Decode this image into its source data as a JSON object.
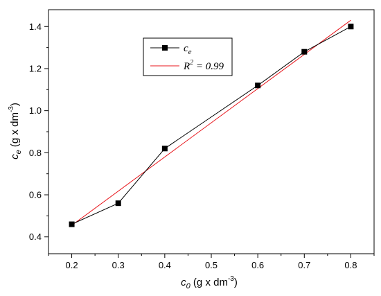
{
  "chart_data": {
    "type": "scatter",
    "title": "",
    "xlabel": {
      "symbol": "c",
      "sub": "0",
      "unit": " (g x dm",
      "exp": "-3",
      "close": ")"
    },
    "ylabel": {
      "symbol": "c",
      "sub": "e",
      "unit": " (g x dm",
      "exp": "-3",
      "close": ")"
    },
    "xlim": [
      0.15,
      0.85
    ],
    "ylim": [
      0.32,
      1.48
    ],
    "xticks": [
      "0.2",
      "0.3",
      "0.4",
      "0.5",
      "0.6",
      "0.7",
      "0.8"
    ],
    "yticks": [
      "0.4",
      "0.6",
      "0.8",
      "1.0",
      "1.2",
      "1.4"
    ],
    "series": [
      {
        "name": "c_e",
        "style": "line-square-markers",
        "color": "#000000",
        "x": [
          0.2,
          0.3,
          0.4,
          0.6,
          0.7,
          0.8
        ],
        "y": [
          0.46,
          0.56,
          0.82,
          1.12,
          1.28,
          1.4
        ]
      },
      {
        "name": "R^2 = 0.99",
        "style": "fit-line",
        "color": "#e8151b",
        "x": [
          0.2,
          0.8
        ],
        "y": [
          0.455,
          1.43
        ]
      }
    ],
    "legend": {
      "placement": "top-left",
      "entry1": {
        "symbol": "c",
        "sub": "e"
      },
      "entry2": {
        "r": "R",
        "sup": "2",
        "eq": " = 0.99"
      }
    },
    "grid": false
  }
}
